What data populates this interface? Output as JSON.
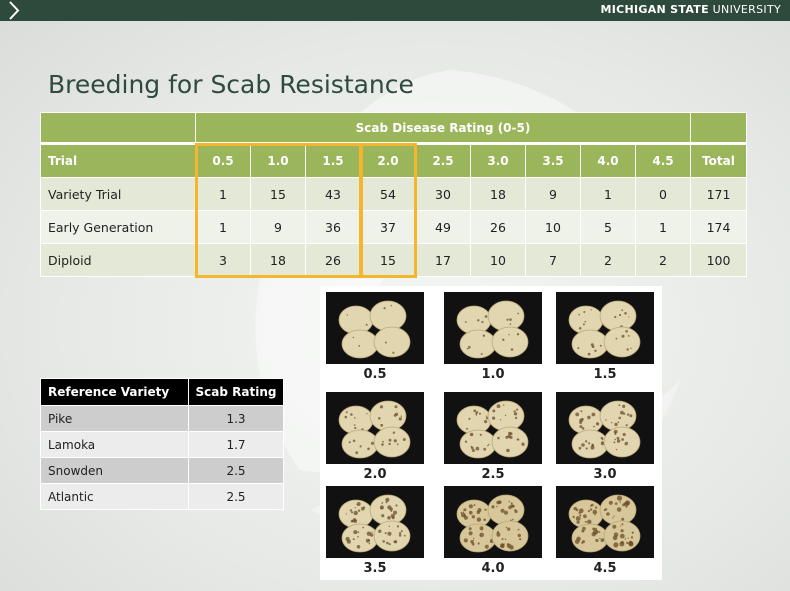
{
  "header": {
    "brand_bold": "MICHIGAN STATE",
    "brand_light": " UNIVERSITY"
  },
  "title": "Breeding for Scab Resistance",
  "scab_table": {
    "banner": "Scab Disease Rating (0-5)",
    "trial_header": "Trial",
    "ratings": [
      "0.5",
      "1.0",
      "1.5",
      "2.0",
      "2.5",
      "3.0",
      "3.5",
      "4.0",
      "4.5"
    ],
    "total_header": "Total",
    "rows": [
      {
        "label": "Variety Trial",
        "values": [
          "1",
          "15",
          "43",
          "54",
          "30",
          "18",
          "9",
          "1",
          "0"
        ],
        "total": "171"
      },
      {
        "label": "Early Generation",
        "values": [
          "1",
          "9",
          "36",
          "37",
          "49",
          "26",
          "10",
          "5",
          "1"
        ],
        "total": "174"
      },
      {
        "label": "Diploid",
        "values": [
          "3",
          "18",
          "26",
          "15",
          "17",
          "10",
          "7",
          "2",
          "2"
        ],
        "total": "100"
      }
    ]
  },
  "reference_table": {
    "headers": [
      "Reference Variety",
      "Scab Rating"
    ],
    "rows": [
      {
        "variety": "Pike",
        "rating": "1.3"
      },
      {
        "variety": "Lamoka",
        "rating": "1.7"
      },
      {
        "variety": "Snowden",
        "rating": "2.5"
      },
      {
        "variety": "Atlantic",
        "rating": "2.5"
      }
    ]
  },
  "photo_grid": {
    "labels": [
      "0.5",
      "1.0",
      "1.5",
      "2.0",
      "2.5",
      "3.0",
      "3.5",
      "4.0",
      "4.5"
    ],
    "severity": [
      0.5,
      1.0,
      1.5,
      2.0,
      2.5,
      3.0,
      3.5,
      4.0,
      4.5
    ]
  },
  "colors": {
    "header_bar": "#2e4a3d",
    "table_green": "#9bb55b",
    "highlight": "#f4b62c"
  }
}
